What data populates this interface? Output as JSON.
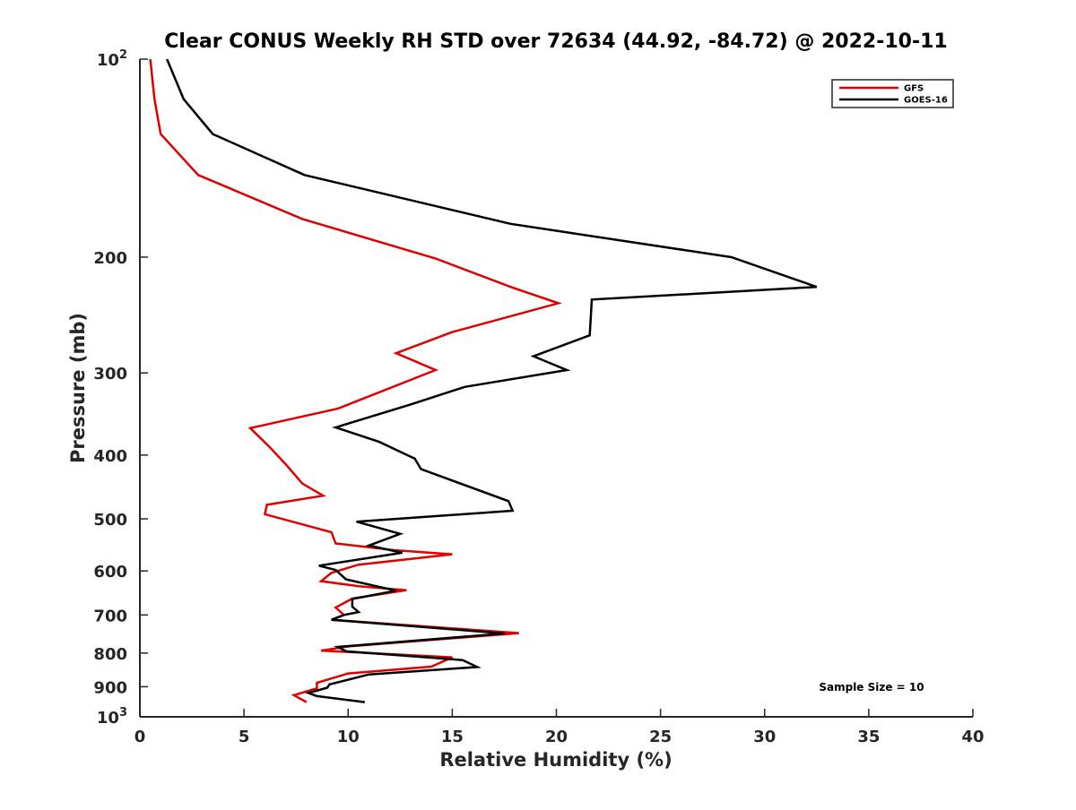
{
  "chart_data": {
    "type": "line",
    "title": "Clear CONUS Weekly RH STD over 72634 (44.92, -84.72) @ 2022-10-11",
    "xlabel": "Relative Humidity (%)",
    "ylabel": "Pressure (mb)",
    "xlim": [
      0,
      40
    ],
    "ylim": [
      100,
      1000
    ],
    "yscale": "log",
    "y_reversed": true,
    "xticks": [
      {
        "value": 0,
        "label": "0"
      },
      {
        "value": 5,
        "label": "5"
      },
      {
        "value": 10,
        "label": "10"
      },
      {
        "value": 15,
        "label": "15"
      },
      {
        "value": 20,
        "label": "20"
      },
      {
        "value": 25,
        "label": "25"
      },
      {
        "value": 30,
        "label": "30"
      },
      {
        "value": 35,
        "label": "35"
      },
      {
        "value": 40,
        "label": "40"
      }
    ],
    "yticks": [
      {
        "value": 100,
        "base": "10",
        "exp": "2"
      },
      {
        "value": 200,
        "base": "200",
        "exp": ""
      },
      {
        "value": 300,
        "base": "300",
        "exp": ""
      },
      {
        "value": 400,
        "base": "400",
        "exp": ""
      },
      {
        "value": 500,
        "base": "500",
        "exp": ""
      },
      {
        "value": 600,
        "base": "600",
        "exp": ""
      },
      {
        "value": 700,
        "base": "700",
        "exp": ""
      },
      {
        "value": 800,
        "base": "800",
        "exp": ""
      },
      {
        "value": 900,
        "base": "900",
        "exp": ""
      },
      {
        "value": 1000,
        "base": "10",
        "exp": "3"
      }
    ],
    "legend_position": "top-right",
    "series": [
      {
        "name": "GFS",
        "color": "#e00000",
        "points": [
          [
            0.5,
            100
          ],
          [
            0.7,
            115
          ],
          [
            1.0,
            130
          ],
          [
            2.8,
            150
          ],
          [
            7.8,
            175
          ],
          [
            14.2,
            201
          ],
          [
            17.8,
            222
          ],
          [
            20.1,
            235
          ],
          [
            15.0,
            260
          ],
          [
            12.3,
            280
          ],
          [
            14.2,
            297
          ],
          [
            9.5,
            340
          ],
          [
            5.3,
            364
          ],
          [
            6.2,
            388
          ],
          [
            7.0,
            413
          ],
          [
            7.8,
            442
          ],
          [
            8.8,
            461
          ],
          [
            6.1,
            476
          ],
          [
            6.0,
            492
          ],
          [
            9.2,
            524
          ],
          [
            9.4,
            545
          ],
          [
            12.2,
            558
          ],
          [
            15.0,
            566
          ],
          [
            10.5,
            587
          ],
          [
            9.2,
            604
          ],
          [
            8.7,
            622
          ],
          [
            10.5,
            633
          ],
          [
            12.8,
            642
          ],
          [
            10.2,
            661
          ],
          [
            9.4,
            682
          ],
          [
            9.8,
            700
          ],
          [
            9.2,
            712
          ],
          [
            18.2,
            746
          ],
          [
            10.1,
            781
          ],
          [
            8.7,
            793
          ],
          [
            15.0,
            812
          ],
          [
            14.0,
            839
          ],
          [
            10.0,
            859
          ],
          [
            8.5,
            888
          ],
          [
            8.5,
            905
          ],
          [
            7.4,
            927
          ],
          [
            8.0,
            950
          ]
        ]
      },
      {
        "name": "GOES-16",
        "color": "#000000",
        "points": [
          [
            1.3,
            100
          ],
          [
            2.1,
            115
          ],
          [
            3.5,
            130
          ],
          [
            7.9,
            150
          ],
          [
            17.8,
            178
          ],
          [
            28.4,
            200
          ],
          [
            32.5,
            222
          ],
          [
            21.7,
            232
          ],
          [
            21.6,
            263
          ],
          [
            18.9,
            283
          ],
          [
            20.5,
            297
          ],
          [
            15.6,
            315
          ],
          [
            13.0,
            335
          ],
          [
            9.4,
            363
          ],
          [
            11.5,
            382
          ],
          [
            13.2,
            405
          ],
          [
            13.5,
            420
          ],
          [
            17.7,
            470
          ],
          [
            17.9,
            486
          ],
          [
            10.4,
            505
          ],
          [
            12.5,
            527
          ],
          [
            11.0,
            549
          ],
          [
            12.6,
            563
          ],
          [
            8.6,
            589
          ],
          [
            9.4,
            598
          ],
          [
            9.9,
            618
          ],
          [
            12.3,
            643
          ],
          [
            10.2,
            662
          ],
          [
            10.2,
            680
          ],
          [
            10.5,
            693
          ],
          [
            9.8,
            700
          ],
          [
            9.2,
            712
          ],
          [
            17.5,
            747
          ],
          [
            9.5,
            783
          ],
          [
            9.9,
            795
          ],
          [
            15.5,
            820
          ],
          [
            16.2,
            840
          ],
          [
            11.0,
            862
          ],
          [
            9.1,
            893
          ],
          [
            9.0,
            903
          ],
          [
            8.1,
            920
          ],
          [
            8.5,
            930
          ],
          [
            10.8,
            950
          ]
        ]
      }
    ],
    "annotation": "Sample Size = 10"
  }
}
